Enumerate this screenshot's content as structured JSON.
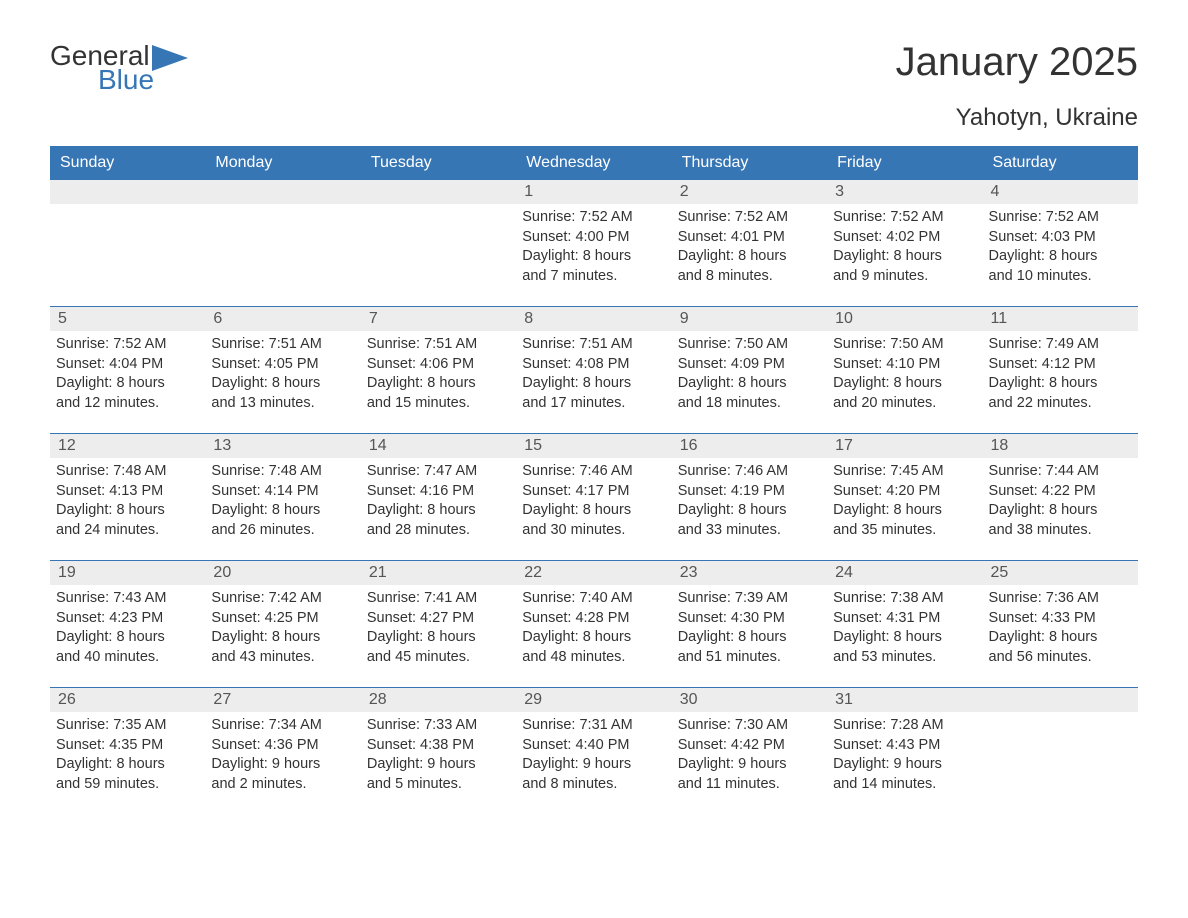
{
  "logo": {
    "text_general": "General",
    "text_blue": "Blue",
    "flag_color": "#3776b5"
  },
  "title": "January 2025",
  "location": "Yahotyn, Ukraine",
  "colors": {
    "header_bg": "#3776b5",
    "header_text": "#ffffff",
    "day_number_bg": "#ededed",
    "day_number_text": "#555555",
    "body_text": "#333333",
    "week_border": "#3776b5",
    "background": "#ffffff"
  },
  "typography": {
    "title_fontsize": 40,
    "location_fontsize": 24,
    "weekday_fontsize": 16,
    "daynum_fontsize": 16,
    "content_fontsize": 14.5
  },
  "weekdays": [
    "Sunday",
    "Monday",
    "Tuesday",
    "Wednesday",
    "Thursday",
    "Friday",
    "Saturday"
  ],
  "weeks": [
    [
      {
        "day": "",
        "sunrise": "",
        "sunset": "",
        "daylight1": "",
        "daylight2": ""
      },
      {
        "day": "",
        "sunrise": "",
        "sunset": "",
        "daylight1": "",
        "daylight2": ""
      },
      {
        "day": "",
        "sunrise": "",
        "sunset": "",
        "daylight1": "",
        "daylight2": ""
      },
      {
        "day": "1",
        "sunrise": "Sunrise: 7:52 AM",
        "sunset": "Sunset: 4:00 PM",
        "daylight1": "Daylight: 8 hours",
        "daylight2": "and 7 minutes."
      },
      {
        "day": "2",
        "sunrise": "Sunrise: 7:52 AM",
        "sunset": "Sunset: 4:01 PM",
        "daylight1": "Daylight: 8 hours",
        "daylight2": "and 8 minutes."
      },
      {
        "day": "3",
        "sunrise": "Sunrise: 7:52 AM",
        "sunset": "Sunset: 4:02 PM",
        "daylight1": "Daylight: 8 hours",
        "daylight2": "and 9 minutes."
      },
      {
        "day": "4",
        "sunrise": "Sunrise: 7:52 AM",
        "sunset": "Sunset: 4:03 PM",
        "daylight1": "Daylight: 8 hours",
        "daylight2": "and 10 minutes."
      }
    ],
    [
      {
        "day": "5",
        "sunrise": "Sunrise: 7:52 AM",
        "sunset": "Sunset: 4:04 PM",
        "daylight1": "Daylight: 8 hours",
        "daylight2": "and 12 minutes."
      },
      {
        "day": "6",
        "sunrise": "Sunrise: 7:51 AM",
        "sunset": "Sunset: 4:05 PM",
        "daylight1": "Daylight: 8 hours",
        "daylight2": "and 13 minutes."
      },
      {
        "day": "7",
        "sunrise": "Sunrise: 7:51 AM",
        "sunset": "Sunset: 4:06 PM",
        "daylight1": "Daylight: 8 hours",
        "daylight2": "and 15 minutes."
      },
      {
        "day": "8",
        "sunrise": "Sunrise: 7:51 AM",
        "sunset": "Sunset: 4:08 PM",
        "daylight1": "Daylight: 8 hours",
        "daylight2": "and 17 minutes."
      },
      {
        "day": "9",
        "sunrise": "Sunrise: 7:50 AM",
        "sunset": "Sunset: 4:09 PM",
        "daylight1": "Daylight: 8 hours",
        "daylight2": "and 18 minutes."
      },
      {
        "day": "10",
        "sunrise": "Sunrise: 7:50 AM",
        "sunset": "Sunset: 4:10 PM",
        "daylight1": "Daylight: 8 hours",
        "daylight2": "and 20 minutes."
      },
      {
        "day": "11",
        "sunrise": "Sunrise: 7:49 AM",
        "sunset": "Sunset: 4:12 PM",
        "daylight1": "Daylight: 8 hours",
        "daylight2": "and 22 minutes."
      }
    ],
    [
      {
        "day": "12",
        "sunrise": "Sunrise: 7:48 AM",
        "sunset": "Sunset: 4:13 PM",
        "daylight1": "Daylight: 8 hours",
        "daylight2": "and 24 minutes."
      },
      {
        "day": "13",
        "sunrise": "Sunrise: 7:48 AM",
        "sunset": "Sunset: 4:14 PM",
        "daylight1": "Daylight: 8 hours",
        "daylight2": "and 26 minutes."
      },
      {
        "day": "14",
        "sunrise": "Sunrise: 7:47 AM",
        "sunset": "Sunset: 4:16 PM",
        "daylight1": "Daylight: 8 hours",
        "daylight2": "and 28 minutes."
      },
      {
        "day": "15",
        "sunrise": "Sunrise: 7:46 AM",
        "sunset": "Sunset: 4:17 PM",
        "daylight1": "Daylight: 8 hours",
        "daylight2": "and 30 minutes."
      },
      {
        "day": "16",
        "sunrise": "Sunrise: 7:46 AM",
        "sunset": "Sunset: 4:19 PM",
        "daylight1": "Daylight: 8 hours",
        "daylight2": "and 33 minutes."
      },
      {
        "day": "17",
        "sunrise": "Sunrise: 7:45 AM",
        "sunset": "Sunset: 4:20 PM",
        "daylight1": "Daylight: 8 hours",
        "daylight2": "and 35 minutes."
      },
      {
        "day": "18",
        "sunrise": "Sunrise: 7:44 AM",
        "sunset": "Sunset: 4:22 PM",
        "daylight1": "Daylight: 8 hours",
        "daylight2": "and 38 minutes."
      }
    ],
    [
      {
        "day": "19",
        "sunrise": "Sunrise: 7:43 AM",
        "sunset": "Sunset: 4:23 PM",
        "daylight1": "Daylight: 8 hours",
        "daylight2": "and 40 minutes."
      },
      {
        "day": "20",
        "sunrise": "Sunrise: 7:42 AM",
        "sunset": "Sunset: 4:25 PM",
        "daylight1": "Daylight: 8 hours",
        "daylight2": "and 43 minutes."
      },
      {
        "day": "21",
        "sunrise": "Sunrise: 7:41 AM",
        "sunset": "Sunset: 4:27 PM",
        "daylight1": "Daylight: 8 hours",
        "daylight2": "and 45 minutes."
      },
      {
        "day": "22",
        "sunrise": "Sunrise: 7:40 AM",
        "sunset": "Sunset: 4:28 PM",
        "daylight1": "Daylight: 8 hours",
        "daylight2": "and 48 minutes."
      },
      {
        "day": "23",
        "sunrise": "Sunrise: 7:39 AM",
        "sunset": "Sunset: 4:30 PM",
        "daylight1": "Daylight: 8 hours",
        "daylight2": "and 51 minutes."
      },
      {
        "day": "24",
        "sunrise": "Sunrise: 7:38 AM",
        "sunset": "Sunset: 4:31 PM",
        "daylight1": "Daylight: 8 hours",
        "daylight2": "and 53 minutes."
      },
      {
        "day": "25",
        "sunrise": "Sunrise: 7:36 AM",
        "sunset": "Sunset: 4:33 PM",
        "daylight1": "Daylight: 8 hours",
        "daylight2": "and 56 minutes."
      }
    ],
    [
      {
        "day": "26",
        "sunrise": "Sunrise: 7:35 AM",
        "sunset": "Sunset: 4:35 PM",
        "daylight1": "Daylight: 8 hours",
        "daylight2": "and 59 minutes."
      },
      {
        "day": "27",
        "sunrise": "Sunrise: 7:34 AM",
        "sunset": "Sunset: 4:36 PM",
        "daylight1": "Daylight: 9 hours",
        "daylight2": "and 2 minutes."
      },
      {
        "day": "28",
        "sunrise": "Sunrise: 7:33 AM",
        "sunset": "Sunset: 4:38 PM",
        "daylight1": "Daylight: 9 hours",
        "daylight2": "and 5 minutes."
      },
      {
        "day": "29",
        "sunrise": "Sunrise: 7:31 AM",
        "sunset": "Sunset: 4:40 PM",
        "daylight1": "Daylight: 9 hours",
        "daylight2": "and 8 minutes."
      },
      {
        "day": "30",
        "sunrise": "Sunrise: 7:30 AM",
        "sunset": "Sunset: 4:42 PM",
        "daylight1": "Daylight: 9 hours",
        "daylight2": "and 11 minutes."
      },
      {
        "day": "31",
        "sunrise": "Sunrise: 7:28 AM",
        "sunset": "Sunset: 4:43 PM",
        "daylight1": "Daylight: 9 hours",
        "daylight2": "and 14 minutes."
      },
      {
        "day": "",
        "sunrise": "",
        "sunset": "",
        "daylight1": "",
        "daylight2": ""
      }
    ]
  ]
}
